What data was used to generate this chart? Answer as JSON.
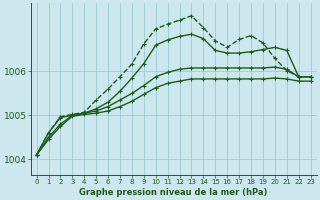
{
  "title": "Graphe pression niveau de la mer (hPa)",
  "bg_color": "#cce8ee",
  "plot_bg_color": "#cce8ee",
  "grid_color": "#99ccd6",
  "line_color": "#1e5c1e",
  "xlim": [
    -0.5,
    23.5
  ],
  "ylim": [
    1003.65,
    1007.55
  ],
  "yticks": [
    1004,
    1005,
    1006
  ],
  "xticks": [
    0,
    1,
    2,
    3,
    4,
    5,
    6,
    7,
    8,
    9,
    10,
    11,
    12,
    13,
    14,
    15,
    16,
    17,
    18,
    19,
    20,
    21,
    22,
    23
  ],
  "series": [
    {
      "x": [
        0,
        1,
        2,
        3,
        4,
        5,
        6,
        7,
        8,
        9,
        10,
        11,
        12,
        13,
        14,
        15,
        16,
        17,
        18,
        19,
        20,
        21,
        22,
        23
      ],
      "y": [
        1004.1,
        1004.6,
        1004.97,
        1005.02,
        1005.07,
        1005.35,
        1005.6,
        1005.88,
        1006.17,
        1006.63,
        1006.97,
        1007.08,
        1007.17,
        1007.27,
        1007.0,
        1006.7,
        1006.55,
        1006.73,
        1006.82,
        1006.65,
        1006.3,
        1006.02,
        1005.88,
        1005.88
      ],
      "dashed": true,
      "marker": true,
      "lw": 1.0
    },
    {
      "x": [
        0,
        1,
        2,
        3,
        4,
        5,
        6,
        7,
        8,
        9,
        10,
        11,
        12,
        13,
        14,
        15,
        16,
        17,
        18,
        19,
        20,
        21,
        22,
        23
      ],
      "y": [
        1004.1,
        1004.6,
        1004.95,
        1005.0,
        1005.05,
        1005.15,
        1005.3,
        1005.55,
        1005.85,
        1006.18,
        1006.6,
        1006.72,
        1006.8,
        1006.85,
        1006.75,
        1006.48,
        1006.42,
        1006.42,
        1006.45,
        1006.5,
        1006.55,
        1006.48,
        1005.88,
        1005.88
      ],
      "dashed": false,
      "marker": true,
      "lw": 1.0
    },
    {
      "x": [
        0,
        1,
        2,
        3,
        4,
        5,
        6,
        7,
        8,
        9,
        10,
        11,
        12,
        13,
        14,
        15,
        16,
        17,
        18,
        19,
        20,
        21,
        22,
        23
      ],
      "y": [
        1004.1,
        1004.5,
        1004.8,
        1005.0,
        1005.05,
        1005.1,
        1005.2,
        1005.35,
        1005.5,
        1005.68,
        1005.88,
        1005.98,
        1006.05,
        1006.08,
        1006.08,
        1006.08,
        1006.08,
        1006.08,
        1006.08,
        1006.08,
        1006.1,
        1006.05,
        1005.88,
        1005.88
      ],
      "dashed": false,
      "marker": true,
      "lw": 1.0
    },
    {
      "x": [
        0,
        1,
        2,
        3,
        4,
        5,
        6,
        7,
        8,
        9,
        10,
        11,
        12,
        13,
        14,
        15,
        16,
        17,
        18,
        19,
        20,
        21,
        22,
        23
      ],
      "y": [
        1004.1,
        1004.45,
        1004.75,
        1004.98,
        1005.02,
        1005.05,
        1005.1,
        1005.2,
        1005.32,
        1005.48,
        1005.63,
        1005.73,
        1005.78,
        1005.83,
        1005.83,
        1005.83,
        1005.83,
        1005.83,
        1005.83,
        1005.83,
        1005.85,
        1005.83,
        1005.78,
        1005.78
      ],
      "dashed": false,
      "marker": true,
      "lw": 1.0
    }
  ]
}
